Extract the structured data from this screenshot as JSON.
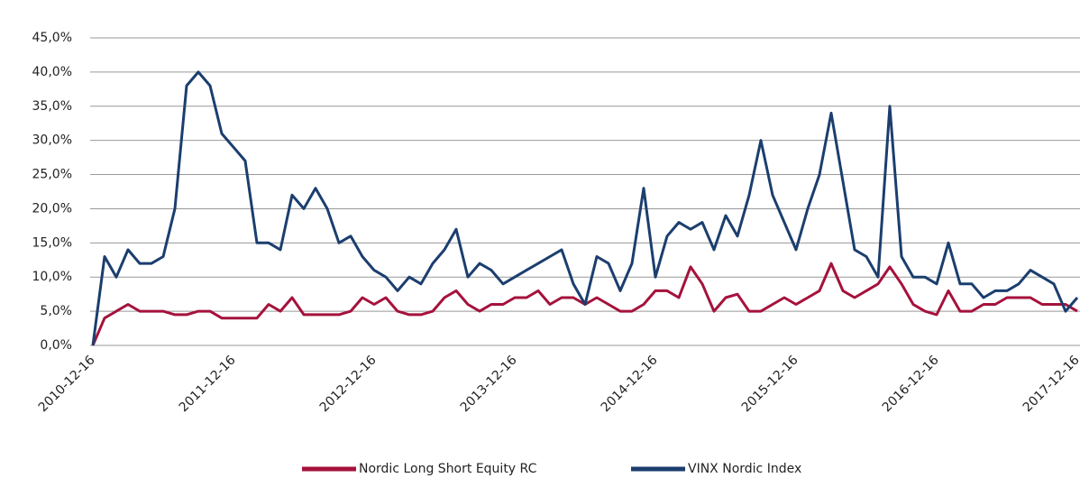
{
  "chart_data": {
    "type": "line",
    "categories": [
      "2010-12-16",
      null,
      null,
      null,
      null,
      null,
      null,
      null,
      null,
      null,
      null,
      null,
      "2011-12-16",
      null,
      null,
      null,
      null,
      null,
      null,
      null,
      null,
      null,
      null,
      null,
      "2012-12-16",
      null,
      null,
      null,
      null,
      null,
      null,
      null,
      null,
      null,
      null,
      null,
      "2013-12-16",
      null,
      null,
      null,
      null,
      null,
      null,
      null,
      null,
      null,
      null,
      null,
      "2014-12-16",
      null,
      null,
      null,
      null,
      null,
      null,
      null,
      null,
      null,
      null,
      null,
      "2015-12-16",
      null,
      null,
      null,
      null,
      null,
      null,
      null,
      null,
      null,
      null,
      null,
      "2016-12-16",
      null,
      null,
      null,
      null,
      null,
      null,
      null,
      null,
      null,
      null,
      null,
      "2017-12-16"
    ],
    "series": [
      {
        "name": "Nordic Long Short Equity RC",
        "color": "#a5123c",
        "values": [
          0,
          4,
          5,
          6,
          5,
          5,
          5,
          4.5,
          4.5,
          5,
          5,
          4,
          4,
          4,
          4,
          6,
          5,
          7,
          4.5,
          4.5,
          4.5,
          4.5,
          5,
          7,
          6,
          7,
          5,
          4.5,
          4.5,
          5,
          7,
          8,
          6,
          5,
          6,
          6,
          7,
          7,
          8,
          6,
          7,
          7,
          6,
          7,
          6,
          5,
          5,
          6,
          8,
          8,
          7,
          11.5,
          9,
          5,
          7,
          7.5,
          5,
          5,
          6,
          7,
          6,
          7,
          8,
          12,
          8,
          7,
          8,
          9,
          11.5,
          9,
          6,
          5,
          4.5,
          8,
          5,
          5,
          6,
          6,
          7,
          7,
          7,
          6,
          6,
          6,
          5
        ]
      },
      {
        "name": "VINX Nordic Index",
        "color": "#1b3e6e",
        "values": [
          0,
          13,
          10,
          14,
          12,
          12,
          13,
          20,
          38,
          40,
          38,
          31,
          29,
          27,
          15,
          15,
          14,
          22,
          20,
          23,
          20,
          15,
          16,
          13,
          11,
          10,
          8,
          10,
          9,
          12,
          14,
          17,
          10,
          12,
          11,
          9,
          10,
          11,
          12,
          13,
          14,
          9,
          6,
          13,
          12,
          8,
          12,
          23,
          10,
          16,
          18,
          17,
          18,
          14,
          19,
          16,
          22,
          30,
          22,
          18,
          14,
          20,
          25,
          34,
          24,
          14,
          13,
          10,
          35,
          13,
          10,
          10,
          9,
          15,
          9,
          9,
          7,
          8,
          8,
          9,
          11,
          10,
          9,
          5,
          7
        ]
      }
    ],
    "ylim": [
      0,
      45
    ],
    "yticks": [
      {
        "value": 0,
        "label": "0,0%"
      },
      {
        "value": 5,
        "label": "5,0%"
      },
      {
        "value": 10,
        "label": "10,0%"
      },
      {
        "value": 15,
        "label": "15,0%"
      },
      {
        "value": 20,
        "label": "20,0%"
      },
      {
        "value": 25,
        "label": "25,0%"
      },
      {
        "value": 30,
        "label": "30,0%"
      },
      {
        "value": 35,
        "label": "35,0%"
      },
      {
        "value": 40,
        "label": "40,0%"
      },
      {
        "value": 45,
        "label": "45,0%"
      }
    ],
    "grid": true,
    "legend": "bottom"
  }
}
